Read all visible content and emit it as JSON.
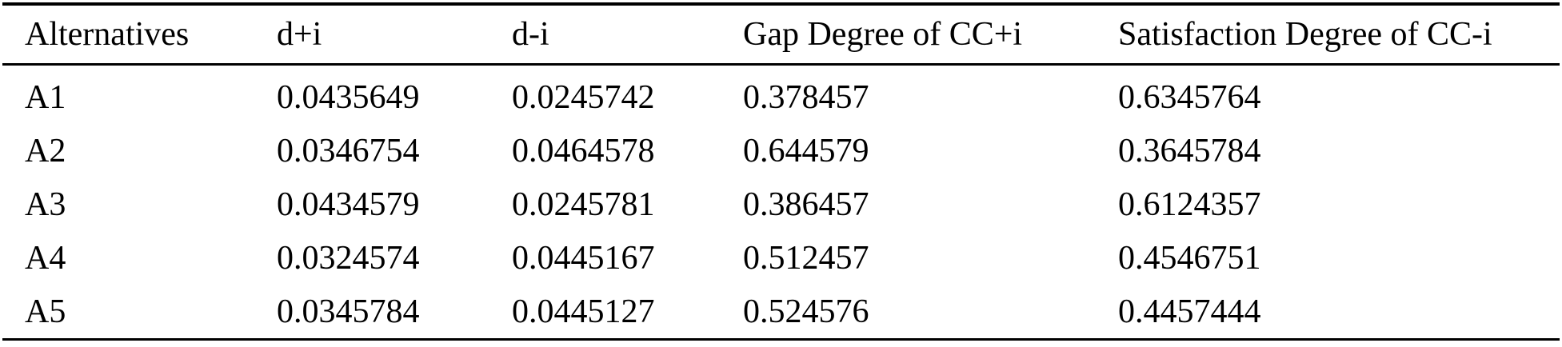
{
  "table": {
    "columns": [
      "Alternatives",
      "d+i",
      "d-i",
      "Gap Degree of CC+i",
      "Satisfaction Degree of CC-i"
    ],
    "rows": [
      [
        "A1",
        "0.0435649",
        "0.0245742",
        "0.378457",
        "0.6345764"
      ],
      [
        "A2",
        "0.0346754",
        "0.0464578",
        "0.644579",
        "0.3645784"
      ],
      [
        "A3",
        "0.0434579",
        "0.0245781",
        "0.386457",
        "0.6124357"
      ],
      [
        "A4",
        "0.0324574",
        "0.0445167",
        "0.512457",
        "0.4546751"
      ],
      [
        "A5",
        "0.0345784",
        "0.0445127",
        "0.524576",
        "0.4457444"
      ]
    ]
  },
  "chart_data": {
    "type": "table",
    "title": "",
    "columns": [
      "Alternatives",
      "d+i",
      "d-i",
      "Gap Degree of CC+i",
      "Satisfaction Degree of CC-i"
    ],
    "alternatives": [
      "A1",
      "A2",
      "A3",
      "A4",
      "A5"
    ],
    "d_plus_i": [
      0.0435649,
      0.0346754,
      0.0434579,
      0.0324574,
      0.0345784
    ],
    "d_minus_i": [
      0.0245742,
      0.0464578,
      0.0245781,
      0.0445167,
      0.0445127
    ],
    "gap_degree_cc_plus_i": [
      0.378457,
      0.644579,
      0.386457,
      0.512457,
      0.524576
    ],
    "satisfaction_degree_cc_minus_i": [
      0.6345764,
      0.3645784,
      0.6124357,
      0.4546751,
      0.4457444
    ]
  },
  "colors": {
    "text": "#000000",
    "background": "#ffffff",
    "rule": "#000000"
  }
}
